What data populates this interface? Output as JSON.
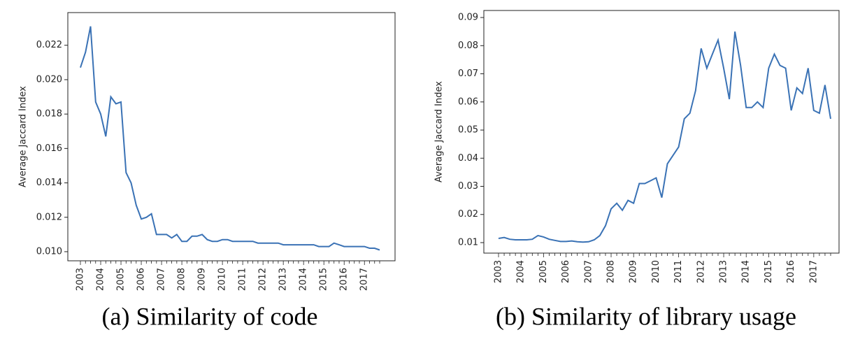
{
  "chart_data": [
    {
      "type": "line",
      "caption": "(a) Similarity of code",
      "y_label": "Average Jaccard Index",
      "color": "#3a72b5",
      "categories": [
        "2003",
        null,
        null,
        null,
        "2004",
        null,
        null,
        null,
        "2005",
        null,
        null,
        null,
        "2006",
        null,
        null,
        null,
        "2007",
        null,
        null,
        null,
        "2008",
        null,
        null,
        null,
        "2009",
        null,
        null,
        null,
        "2010",
        null,
        null,
        null,
        "2011",
        null,
        null,
        null,
        "2012",
        null,
        null,
        null,
        "2013",
        null,
        null,
        null,
        "2014",
        null,
        null,
        null,
        "2015",
        null,
        null,
        null,
        "2016",
        null,
        null,
        null,
        "2017",
        null,
        null,
        null
      ],
      "values": [
        0.0207,
        0.0216,
        0.0231,
        0.0187,
        0.018,
        0.0167,
        0.019,
        0.0186,
        0.0187,
        0.0146,
        0.014,
        0.0127,
        0.0119,
        0.012,
        0.0122,
        0.011,
        0.011,
        0.011,
        0.0108,
        0.011,
        0.0106,
        0.0106,
        0.0109,
        0.0109,
        0.011,
        0.0107,
        0.0106,
        0.0106,
        0.0107,
        0.0107,
        0.0106,
        0.0106,
        0.0106,
        0.0106,
        0.0106,
        0.0105,
        0.0105,
        0.0105,
        0.0105,
        0.0105,
        0.0104,
        0.0104,
        0.0104,
        0.0104,
        0.0104,
        0.0104,
        0.0104,
        0.0103,
        0.0103,
        0.0103,
        0.0105,
        0.0104,
        0.0103,
        0.0103,
        0.0103,
        0.0103,
        0.0103,
        0.0102,
        0.0102,
        0.0101
      ],
      "ylim": [
        0.00947,
        0.0239
      ],
      "yticks": [
        {
          "value": 0.01,
          "label": "0.010"
        },
        {
          "value": 0.012,
          "label": "0.012"
        },
        {
          "value": 0.014,
          "label": "0.014"
        },
        {
          "value": 0.016,
          "label": "0.016"
        },
        {
          "value": 0.018,
          "label": "0.018"
        },
        {
          "value": 0.02,
          "label": "0.020"
        },
        {
          "value": 0.022,
          "label": "0.022"
        }
      ]
    },
    {
      "type": "line",
      "caption": "(b) Similarity of library usage",
      "y_label": "Average Jaccard Index",
      "color": "#3a72b5",
      "categories": [
        "2003",
        null,
        null,
        null,
        "2004",
        null,
        null,
        null,
        "2005",
        null,
        null,
        null,
        "2006",
        null,
        null,
        null,
        "2007",
        null,
        null,
        null,
        "2008",
        null,
        null,
        null,
        "2009",
        null,
        null,
        null,
        "2010",
        null,
        null,
        null,
        "2011",
        null,
        null,
        null,
        "2012",
        null,
        null,
        null,
        "2013",
        null,
        null,
        null,
        "2014",
        null,
        null,
        null,
        "2015",
        null,
        null,
        null,
        "2016",
        null,
        null,
        null,
        "2017",
        null,
        null,
        null
      ],
      "values": [
        0.0115,
        0.0118,
        0.0112,
        0.011,
        0.011,
        0.011,
        0.0112,
        0.0125,
        0.012,
        0.0112,
        0.0108,
        0.0104,
        0.0104,
        0.0106,
        0.0103,
        0.0102,
        0.0103,
        0.011,
        0.0125,
        0.016,
        0.022,
        0.024,
        0.0215,
        0.025,
        0.024,
        0.031,
        0.031,
        0.032,
        0.033,
        0.026,
        0.038,
        0.041,
        0.044,
        0.054,
        0.056,
        0.064,
        0.079,
        0.072,
        0.077,
        0.082,
        0.072,
        0.061,
        0.085,
        0.073,
        0.058,
        0.058,
        0.06,
        0.058,
        0.072,
        0.077,
        0.073,
        0.072,
        0.057,
        0.065,
        0.063,
        0.072,
        0.057,
        0.056,
        0.066,
        0.054
      ],
      "ylim": [
        0.00627,
        0.0925
      ],
      "yticks": [
        0.01,
        0.02,
        0.03,
        0.04,
        0.05,
        0.06,
        0.07,
        0.08,
        0.09
      ]
    }
  ]
}
